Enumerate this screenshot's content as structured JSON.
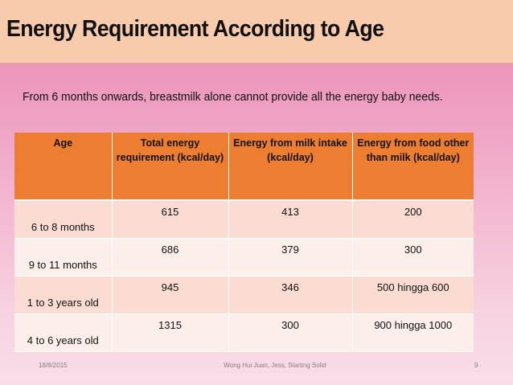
{
  "title": "Energy Requirement According to Age",
  "subtitle": "From 6 months onwards, breastmilk alone cannot provide all the energy baby needs.",
  "table": {
    "headers": [
      "Age",
      "Total energy requirement (kcal/day)",
      "Energy from milk intake (kcal/day)",
      "Energy from food other than milk (kcal/day)"
    ],
    "rows": [
      [
        "6 to 8 months",
        "615",
        "413",
        "200"
      ],
      [
        "9 to 11 months",
        "686",
        "379",
        "300"
      ],
      [
        "1 to 3 years old",
        "945",
        "346",
        "500 hingga 600"
      ],
      [
        "4 to 6 years old",
        "1315",
        "300",
        "900 hingga 1000"
      ]
    ]
  },
  "footer": {
    "date": "18/8/2015",
    "author": "Wong Hui Juan, Jess, Starting Solid",
    "page": "9"
  },
  "colors": {
    "title_bar": "#f8cbad",
    "header_orange": "#ed7d31",
    "row_dark": "#fadcd3",
    "row_light": "#fcefeb",
    "background_pink": "#ee9cc0"
  }
}
